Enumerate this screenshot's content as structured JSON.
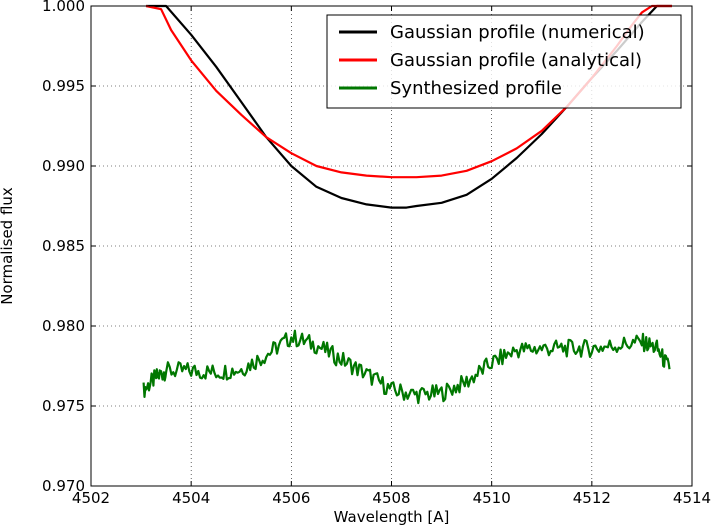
{
  "chart_data": {
    "type": "line",
    "xlabel": "Wavelength [A]",
    "ylabel": "Normalised flux",
    "xlim": [
      4502,
      4514
    ],
    "ylim": [
      0.97,
      1.0
    ],
    "xticks": [
      4502,
      4504,
      4506,
      4508,
      4510,
      4512,
      4514
    ],
    "yticks": [
      0.97,
      0.975,
      0.98,
      0.985,
      0.99,
      0.995,
      1.0
    ],
    "xtick_labels": [
      "4502",
      "4504",
      "4506",
      "4508",
      "4510",
      "4512",
      "4514"
    ],
    "ytick_labels": [
      "0.970",
      "0.975",
      "0.980",
      "0.985",
      "0.990",
      "0.995",
      "1.000"
    ],
    "grid": true,
    "legend_position": "top-right",
    "series": [
      {
        "name": "Gaussian profile (numerical)",
        "color": "#000000",
        "x": [
          4503.1,
          4503.5,
          4504.0,
          4504.5,
          4505.0,
          4505.5,
          4506.0,
          4506.5,
          4507.0,
          4507.5,
          4508.0,
          4508.3,
          4508.5,
          4509.0,
          4509.5,
          4510.0,
          4510.5,
          4511.0,
          4511.5,
          4512.0,
          4512.5,
          4513.0,
          4513.3,
          4513.6
        ],
        "y": [
          1.0,
          1.0,
          0.9982,
          0.9962,
          0.994,
          0.9918,
          0.99,
          0.9887,
          0.988,
          0.9876,
          0.9874,
          0.9874,
          0.9875,
          0.9877,
          0.9882,
          0.9892,
          0.9905,
          0.992,
          0.9937,
          0.9955,
          0.9972,
          0.999,
          1.0,
          1.0
        ]
      },
      {
        "name": "Gaussian profile (analytical)",
        "color": "#ff0000",
        "x": [
          4503.1,
          4503.4,
          4503.6,
          4504.0,
          4504.5,
          4505.0,
          4505.5,
          4506.0,
          4506.5,
          4507.0,
          4507.5,
          4508.0,
          4508.3,
          4508.5,
          4509.0,
          4509.5,
          4510.0,
          4510.5,
          4511.0,
          4511.5,
          4512.0,
          4512.5,
          4512.8,
          4513.0,
          4513.2,
          4513.4,
          4513.6
        ],
        "y": [
          1.0,
          0.9998,
          0.9985,
          0.9966,
          0.9947,
          0.9932,
          0.9918,
          0.9908,
          0.99,
          0.9896,
          0.9894,
          0.9893,
          0.9893,
          0.9893,
          0.9894,
          0.9897,
          0.9903,
          0.9911,
          0.9922,
          0.9937,
          0.9955,
          0.9975,
          0.9988,
          0.9996,
          1.0,
          1.0,
          1.0
        ]
      },
      {
        "name": "Synthesized profile",
        "color": "#007700",
        "x": [
          4503.05,
          4503.3,
          4503.5,
          4504.0,
          4504.5,
          4505.0,
          4505.5,
          4506.0,
          4506.5,
          4507.0,
          4507.5,
          4508.0,
          4508.5,
          4509.0,
          4509.5,
          4510.0,
          4510.5,
          4511.0,
          4511.5,
          4512.0,
          4512.5,
          4513.0,
          4513.3,
          4513.55
        ],
        "y": [
          0.976,
          0.9768,
          0.9772,
          0.9772,
          0.9771,
          0.9773,
          0.9782,
          0.9793,
          0.9788,
          0.9779,
          0.977,
          0.976,
          0.9757,
          0.9758,
          0.9765,
          0.9777,
          0.9785,
          0.9786,
          0.9786,
          0.9786,
          0.9788,
          0.979,
          0.9786,
          0.9773
        ]
      }
    ]
  }
}
